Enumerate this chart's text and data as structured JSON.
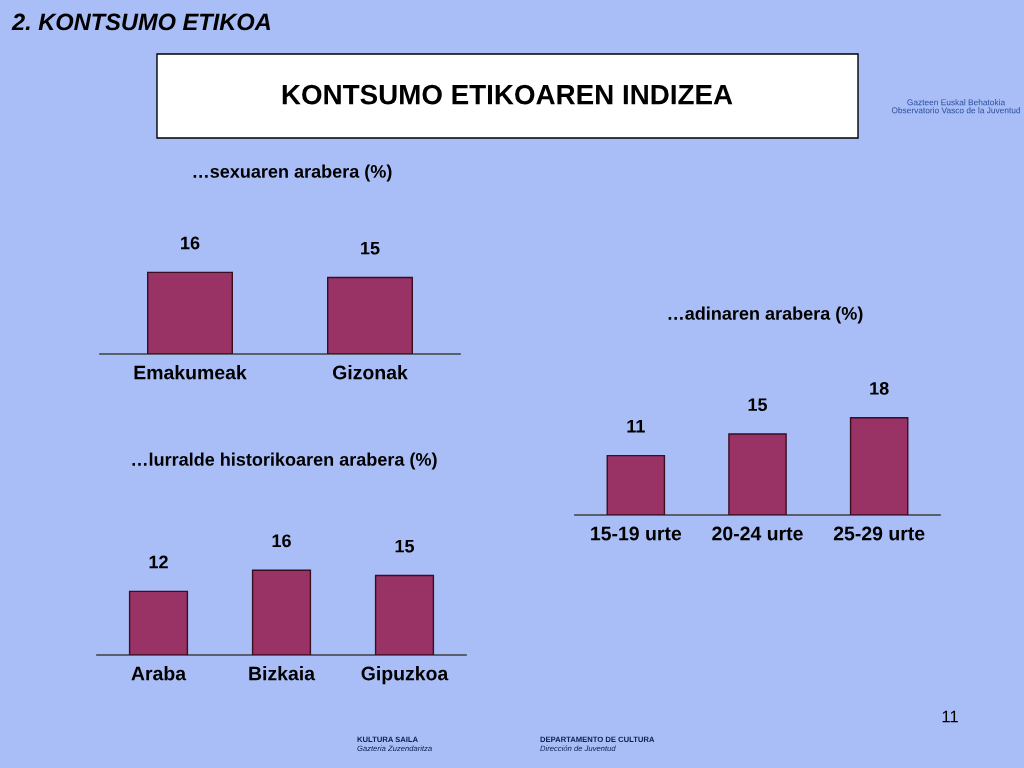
{
  "chart_data": [
    {
      "type": "other",
      "title": "KONTSUMO ETIKOAREN INDIZEA",
      "subtitle": "2. KONTSUMO ETIKOA",
      "annotations": [
        "Gazteen Euskal Behatokia",
        "Observatorio Vasco de la Juventud",
        "KULTURA SAILA",
        "Gazteria Zuzendaritza",
        "DEPARTAMENTO DE CULTURA",
        "Dirección de Juventud",
        "11"
      ]
    },
    {
      "type": "bar",
      "title": "…sexuaren arabera (%)",
      "categories": [
        "Emakumeak",
        "Gizonak"
      ],
      "values": [
        16,
        15
      ],
      "color": "#993366",
      "data_labels": true
    },
    {
      "type": "bar",
      "title": "…adinaren arabera (%)",
      "categories": [
        "15-19 urte",
        "20-24 urte",
        "25-29 urte"
      ],
      "values": [
        11,
        15,
        18
      ],
      "color": "#993366",
      "data_labels": true
    },
    {
      "type": "bar",
      "title": "…lurralde historikoaren arabera (%)",
      "categories": [
        "Araba",
        "Bizkaia",
        "Gipuzkoa"
      ],
      "values": [
        12,
        16,
        15
      ],
      "color": "#993366",
      "data_labels": true
    }
  ]
}
